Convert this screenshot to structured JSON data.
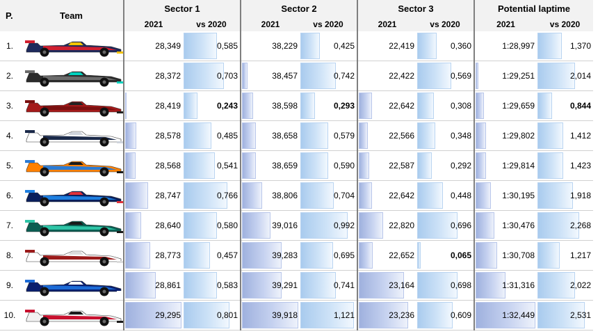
{
  "headers": {
    "pos": "P.",
    "team": "Team",
    "sector1": "Sector 1",
    "sector2": "Sector 2",
    "sector3": "Sector 3",
    "laptime": "Potential laptime",
    "col2021": "2021",
    "colvs": "vs 2020"
  },
  "colors": {
    "bar_2021": "#9fb1de",
    "bar_vs2020": "#a9cbee",
    "header_bg": "#f2f2f2"
  },
  "rows": [
    {
      "pos": "1.",
      "car": "red-bull-car",
      "car_colors": [
        "#1e2a5c",
        "#d11f2f",
        "#f3c300"
      ],
      "s1": "28,349",
      "s1d": "0,585",
      "s2": "38,229",
      "s2d": "0,425",
      "s3": "22,419",
      "s3d": "0,360",
      "lt": "1:28,997",
      "ltd": "1,370"
    },
    {
      "pos": "2.",
      "car": "mercedes-car",
      "car_colors": [
        "#2b2b2b",
        "#6b6b6b",
        "#00d2be"
      ],
      "s1": "28,372",
      "s1d": "0,703",
      "s2": "38,457",
      "s2d": "0,742",
      "s3": "22,422",
      "s3d": "0,569",
      "lt": "1:29,251",
      "ltd": "2,014"
    },
    {
      "pos": "3.",
      "car": "ferrari-car",
      "car_colors": [
        "#a51a1a",
        "#7a1010",
        "#222222"
      ],
      "s1": "28,419",
      "s1d": "0,243",
      "s2": "38,598",
      "s2d": "0,293",
      "s3": "22,642",
      "s3d": "0,308",
      "lt": "1:29,659",
      "ltd": "0,844"
    },
    {
      "pos": "4.",
      "car": "alphatauri-car",
      "car_colors": [
        "#ffffff",
        "#1b2a4a",
        "#cfd4dc"
      ],
      "s1": "28,578",
      "s1d": "0,485",
      "s2": "38,658",
      "s2d": "0,579",
      "s3": "22,566",
      "s3d": "0,348",
      "lt": "1:29,802",
      "ltd": "1,412"
    },
    {
      "pos": "5.",
      "car": "mclaren-car",
      "car_colors": [
        "#ff8000",
        "#2a7bd5",
        "#1a1a1a"
      ],
      "s1": "28,568",
      "s1d": "0,541",
      "s2": "38,659",
      "s2d": "0,590",
      "s3": "22,587",
      "s3d": "0,292",
      "lt": "1:29,814",
      "ltd": "1,423"
    },
    {
      "pos": "6.",
      "car": "alpine-car",
      "car_colors": [
        "#0a1f5c",
        "#1e7fe0",
        "#e0323a"
      ],
      "s1": "28,747",
      "s1d": "0,766",
      "s2": "38,806",
      "s2d": "0,704",
      "s3": "22,642",
      "s3d": "0,448",
      "lt": "1:30,195",
      "ltd": "1,918"
    },
    {
      "pos": "7.",
      "car": "aston-martin-car",
      "car_colors": [
        "#0b5e52",
        "#2ec4a6",
        "#1a1a1a"
      ],
      "s1": "28,640",
      "s1d": "0,580",
      "s2": "39,016",
      "s2d": "0,992",
      "s3": "22,820",
      "s3d": "0,696",
      "lt": "1:30,476",
      "ltd": "2,268"
    },
    {
      "pos": "8.",
      "car": "alfa-romeo-car",
      "car_colors": [
        "#ffffff",
        "#9b1b1b",
        "#dcdcdc"
      ],
      "s1": "28,773",
      "s1d": "0,457",
      "s2": "39,283",
      "s2d": "0,695",
      "s3": "22,652",
      "s3d": "0,065",
      "lt": "1:30,708",
      "ltd": "1,217"
    },
    {
      "pos": "9.",
      "car": "williams-car",
      "car_colors": [
        "#0a1f6e",
        "#1c6bd6",
        "#ffffff"
      ],
      "s1": "28,861",
      "s1d": "0,583",
      "s2": "39,291",
      "s2d": "0,741",
      "s3": "23,164",
      "s3d": "0,698",
      "lt": "1:31,316",
      "ltd": "2,022"
    },
    {
      "pos": "10.",
      "car": "haas-car",
      "car_colors": [
        "#f2f2f2",
        "#c8102e",
        "#1a1a1a"
      ],
      "s1": "29,295",
      "s1d": "0,801",
      "s2": "39,918",
      "s2d": "1,121",
      "s3": "23,236",
      "s3d": "0,609",
      "lt": "1:32,449",
      "ltd": "2,531"
    }
  ],
  "bars": [
    {
      "s1": 0.0,
      "s1d": 0.61,
      "s2": 0.0,
      "s2d": 0.36,
      "s3": 0.0,
      "s3d": 0.36,
      "lt": 0.0,
      "ltd": 0.45
    },
    {
      "s1": 0.0,
      "s1d": 0.74,
      "s2": 0.1,
      "s2d": 0.64,
      "s3": 0.0,
      "s3d": 0.62,
      "lt": 0.05,
      "ltd": 0.7
    },
    {
      "s1": 0.03,
      "s1d": 0.25,
      "s2": 0.2,
      "s2d": 0.26,
      "s3": 0.24,
      "s3d": 0.3,
      "lt": 0.14,
      "ltd": 0.27
    },
    {
      "s1": 0.2,
      "s1d": 0.51,
      "s2": 0.25,
      "s2d": 0.5,
      "s3": 0.16,
      "s3d": 0.33,
      "lt": 0.17,
      "ltd": 0.48
    },
    {
      "s1": 0.19,
      "s1d": 0.57,
      "s2": 0.25,
      "s2d": 0.51,
      "s3": 0.18,
      "s3d": 0.27,
      "lt": 0.17,
      "ltd": 0.48
    },
    {
      "s1": 0.41,
      "s1d": 0.8,
      "s2": 0.36,
      "s2d": 0.61,
      "s3": 0.24,
      "s3d": 0.47,
      "lt": 0.25,
      "ltd": 0.66
    },
    {
      "s1": 0.28,
      "s1d": 0.61,
      "s2": 0.5,
      "s2d": 0.86,
      "s3": 0.43,
      "s3d": 0.74,
      "lt": 0.31,
      "ltd": 0.78
    },
    {
      "s1": 0.44,
      "s1d": 0.48,
      "s2": 0.7,
      "s2d": 0.6,
      "s3": 0.25,
      "s3d": 0.06,
      "lt": 0.36,
      "ltd": 0.42
    },
    {
      "s1": 0.54,
      "s1d": 0.61,
      "s2": 0.7,
      "s2d": 0.64,
      "s3": 0.8,
      "s3d": 0.74,
      "lt": 0.5,
      "ltd": 0.7
    },
    {
      "s1": 1.0,
      "s1d": 0.84,
      "s2": 1.0,
      "s2d": 0.97,
      "s3": 0.88,
      "s3d": 0.64,
      "lt": 1.0,
      "ltd": 0.88
    }
  ],
  "bold_cells": [
    {
      "row": 2,
      "col": "s1d"
    },
    {
      "row": 2,
      "col": "s2d"
    },
    {
      "row": 2,
      "col": "ltd"
    },
    {
      "row": 7,
      "col": "s3d"
    }
  ]
}
